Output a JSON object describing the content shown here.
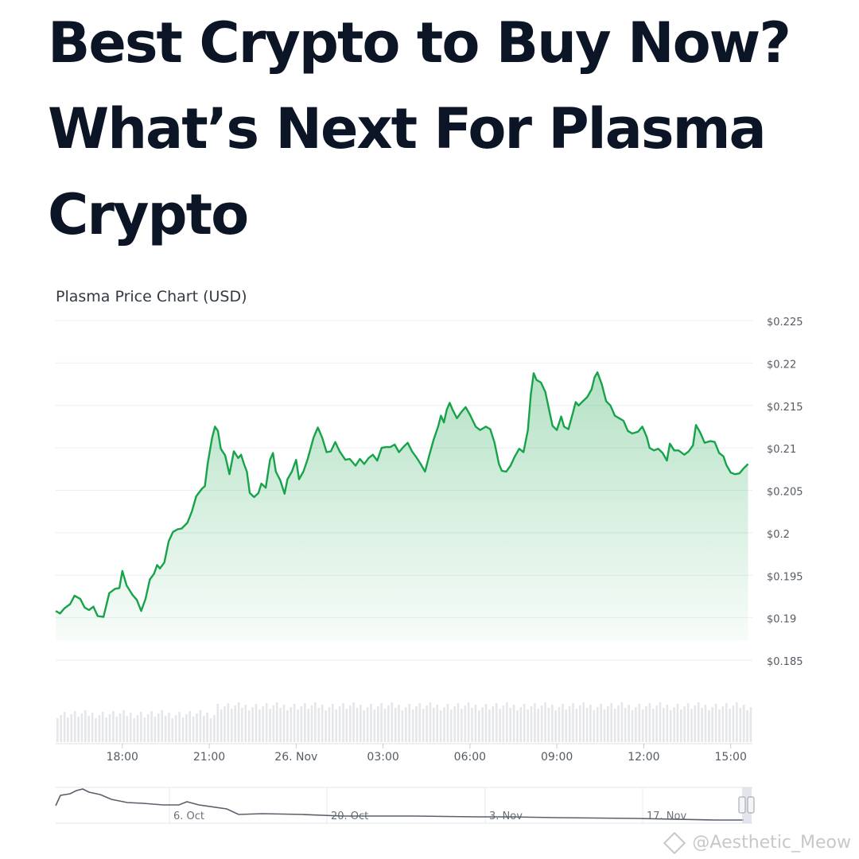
{
  "headline": {
    "line1": "Best Crypto to Buy Now?",
    "line2": "What’s Next For Plasma",
    "line3": "Crypto"
  },
  "chart_data": {
    "type": "area",
    "title": "Plasma Price Chart (USD)",
    "xlabel": "",
    "ylabel": "",
    "ylim": [
      0.185,
      0.225
    ],
    "y_ticks": [
      {
        "value": 0.225,
        "label": "$0.225"
      },
      {
        "value": 0.22,
        "label": "$0.22"
      },
      {
        "value": 0.215,
        "label": "$0.215"
      },
      {
        "value": 0.21,
        "label": "$0.21"
      },
      {
        "value": 0.205,
        "label": "$0.205"
      },
      {
        "value": 0.2,
        "label": "$0.2"
      },
      {
        "value": 0.195,
        "label": "$0.195"
      },
      {
        "value": 0.19,
        "label": "$0.19"
      },
      {
        "value": 0.185,
        "label": "$0.185"
      }
    ],
    "x_ticks": [
      {
        "hour": 17.75,
        "label": "18:00"
      },
      {
        "hour": 20.75,
        "label": "21:00"
      },
      {
        "hour": 23.75,
        "label": "26. Nov"
      },
      {
        "hour": 26.75,
        "label": "03:00"
      },
      {
        "hour": 29.75,
        "label": "06:00"
      },
      {
        "hour": 32.75,
        "label": "09:00"
      },
      {
        "hour": 35.75,
        "label": "12:00"
      },
      {
        "hour": 38.75,
        "label": "15:00"
      }
    ],
    "x_range": [
      15.45,
      39.5
    ],
    "grid": true,
    "line_color": "#16a34a",
    "fill_color": "#16a34a",
    "series": [
      {
        "points": [
          [
            15.45,
            0.1908
          ],
          [
            15.6,
            0.1905
          ],
          [
            15.75,
            0.1911
          ],
          [
            15.95,
            0.1916
          ],
          [
            16.1,
            0.1926
          ],
          [
            16.3,
            0.1922
          ],
          [
            16.45,
            0.1912
          ],
          [
            16.6,
            0.1909
          ],
          [
            16.75,
            0.1913
          ],
          [
            16.9,
            0.1902
          ],
          [
            17.1,
            0.1901
          ],
          [
            17.3,
            0.1929
          ],
          [
            17.5,
            0.1934
          ],
          [
            17.65,
            0.1935
          ],
          [
            17.75,
            0.1955
          ],
          [
            17.9,
            0.1938
          ],
          [
            18.1,
            0.1927
          ],
          [
            18.25,
            0.1921
          ],
          [
            18.4,
            0.1908
          ],
          [
            18.55,
            0.1922
          ],
          [
            18.7,
            0.1945
          ],
          [
            18.85,
            0.1952
          ],
          [
            18.95,
            0.1962
          ],
          [
            19.05,
            0.1958
          ],
          [
            19.2,
            0.1965
          ],
          [
            19.35,
            0.199
          ],
          [
            19.5,
            0.2001
          ],
          [
            19.65,
            0.2004
          ],
          [
            19.8,
            0.2005
          ],
          [
            20.0,
            0.2012
          ],
          [
            20.15,
            0.2025
          ],
          [
            20.3,
            0.2043
          ],
          [
            20.5,
            0.2052
          ],
          [
            20.6,
            0.2055
          ],
          [
            20.7,
            0.2082
          ],
          [
            20.85,
            0.2112
          ],
          [
            20.95,
            0.2125
          ],
          [
            21.05,
            0.212
          ],
          [
            21.15,
            0.2099
          ],
          [
            21.3,
            0.2091
          ],
          [
            21.45,
            0.2069
          ],
          [
            21.6,
            0.2096
          ],
          [
            21.75,
            0.2088
          ],
          [
            21.85,
            0.2092
          ],
          [
            21.95,
            0.2081
          ],
          [
            22.05,
            0.2072
          ],
          [
            22.15,
            0.2047
          ],
          [
            22.3,
            0.2042
          ],
          [
            22.45,
            0.2047
          ],
          [
            22.55,
            0.2058
          ],
          [
            22.7,
            0.2053
          ],
          [
            22.85,
            0.2086
          ],
          [
            22.95,
            0.2094
          ],
          [
            23.05,
            0.2072
          ],
          [
            23.2,
            0.2062
          ],
          [
            23.35,
            0.2046
          ],
          [
            23.45,
            0.2063
          ],
          [
            23.6,
            0.2072
          ],
          [
            23.75,
            0.2086
          ],
          [
            23.85,
            0.2063
          ],
          [
            24.0,
            0.2072
          ],
          [
            24.15,
            0.2087
          ],
          [
            24.35,
            0.2112
          ],
          [
            24.5,
            0.2124
          ],
          [
            24.65,
            0.2112
          ],
          [
            24.8,
            0.2095
          ],
          [
            24.95,
            0.2096
          ],
          [
            25.1,
            0.2107
          ],
          [
            25.25,
            0.2096
          ],
          [
            25.45,
            0.2086
          ],
          [
            25.6,
            0.2087
          ],
          [
            25.8,
            0.2079
          ],
          [
            25.95,
            0.2087
          ],
          [
            26.1,
            0.2081
          ],
          [
            26.25,
            0.2088
          ],
          [
            26.4,
            0.2092
          ],
          [
            26.55,
            0.2085
          ],
          [
            26.7,
            0.21
          ],
          [
            26.85,
            0.2101
          ],
          [
            27.0,
            0.2101
          ],
          [
            27.15,
            0.2104
          ],
          [
            27.3,
            0.2095
          ],
          [
            27.45,
            0.2101
          ],
          [
            27.6,
            0.2106
          ],
          [
            27.75,
            0.2096
          ],
          [
            27.9,
            0.2089
          ],
          [
            28.05,
            0.2081
          ],
          [
            28.2,
            0.2072
          ],
          [
            28.35,
            0.2092
          ],
          [
            28.5,
            0.211
          ],
          [
            28.65,
            0.2125
          ],
          [
            28.75,
            0.2138
          ],
          [
            28.85,
            0.213
          ],
          [
            28.95,
            0.2145
          ],
          [
            29.05,
            0.2153
          ],
          [
            29.15,
            0.2145
          ],
          [
            29.3,
            0.2135
          ],
          [
            29.45,
            0.2142
          ],
          [
            29.6,
            0.2148
          ],
          [
            29.75,
            0.2139
          ],
          [
            29.95,
            0.2125
          ],
          [
            30.1,
            0.2121
          ],
          [
            30.3,
            0.2125
          ],
          [
            30.45,
            0.2122
          ],
          [
            30.6,
            0.2106
          ],
          [
            30.75,
            0.2081
          ],
          [
            30.85,
            0.2073
          ],
          [
            31.0,
            0.2072
          ],
          [
            31.15,
            0.2079
          ],
          [
            31.3,
            0.209
          ],
          [
            31.45,
            0.2099
          ],
          [
            31.6,
            0.2095
          ],
          [
            31.75,
            0.2121
          ],
          [
            31.85,
            0.2163
          ],
          [
            31.95,
            0.2188
          ],
          [
            32.05,
            0.218
          ],
          [
            32.2,
            0.2177
          ],
          [
            32.35,
            0.2166
          ],
          [
            32.5,
            0.2142
          ],
          [
            32.6,
            0.2126
          ],
          [
            32.75,
            0.2121
          ],
          [
            32.9,
            0.2137
          ],
          [
            33.0,
            0.2125
          ],
          [
            33.15,
            0.2122
          ],
          [
            33.3,
            0.2141
          ],
          [
            33.4,
            0.2154
          ],
          [
            33.5,
            0.215
          ],
          [
            33.65,
            0.2155
          ],
          [
            33.8,
            0.216
          ],
          [
            33.95,
            0.2169
          ],
          [
            34.05,
            0.2183
          ],
          [
            34.15,
            0.2189
          ],
          [
            34.3,
            0.2175
          ],
          [
            34.45,
            0.2155
          ],
          [
            34.6,
            0.215
          ],
          [
            34.75,
            0.2138
          ],
          [
            34.9,
            0.2135
          ],
          [
            35.05,
            0.2132
          ],
          [
            35.2,
            0.212
          ],
          [
            35.35,
            0.2117
          ],
          [
            35.55,
            0.2119
          ],
          [
            35.7,
            0.2125
          ],
          [
            35.85,
            0.2113
          ],
          [
            35.95,
            0.21
          ],
          [
            36.1,
            0.2097
          ],
          [
            36.25,
            0.2099
          ],
          [
            36.4,
            0.2094
          ],
          [
            36.55,
            0.2085
          ],
          [
            36.65,
            0.2105
          ],
          [
            36.8,
            0.2097
          ],
          [
            36.95,
            0.2097
          ],
          [
            37.15,
            0.2092
          ],
          [
            37.3,
            0.2096
          ],
          [
            37.45,
            0.2103
          ],
          [
            37.55,
            0.2127
          ],
          [
            37.7,
            0.2118
          ],
          [
            37.85,
            0.2106
          ],
          [
            38.05,
            0.2108
          ],
          [
            38.2,
            0.2107
          ],
          [
            38.35,
            0.2094
          ],
          [
            38.5,
            0.209
          ],
          [
            38.6,
            0.208
          ],
          [
            38.75,
            0.2071
          ],
          [
            38.9,
            0.2069
          ],
          [
            39.05,
            0.207
          ],
          [
            39.2,
            0.2076
          ],
          [
            39.35,
            0.2081
          ]
        ]
      }
    ],
    "navigator": {
      "x_labels": [
        "6. Oct",
        "20. Oct",
        "3. Nov",
        "17. Nov"
      ]
    }
  },
  "watermark": {
    "text": "@Aesthetic_Meow"
  }
}
